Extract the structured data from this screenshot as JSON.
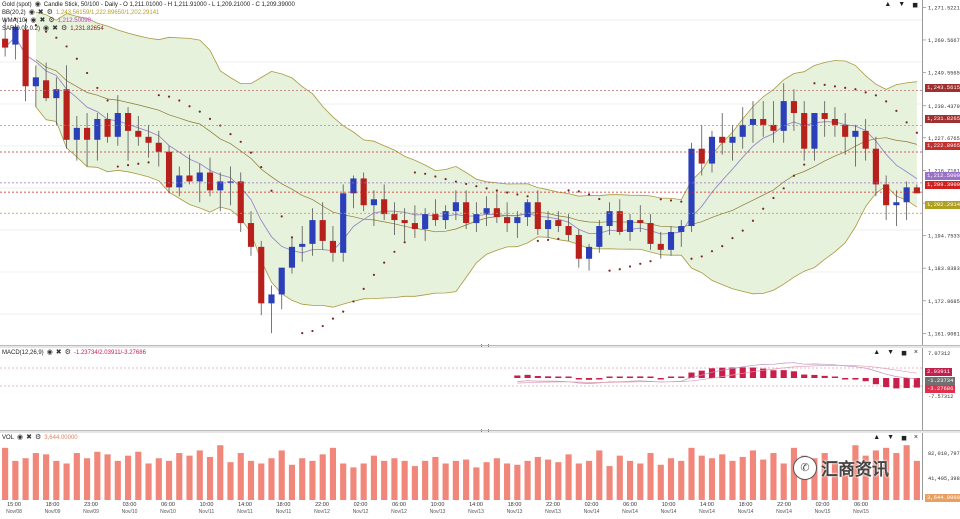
{
  "main": {
    "symbol": "Gold (spot)",
    "chart_desc": "Candle Stick, 50/100 - Daily - O 1,211.01000 - H 1,211.91000 - L 1,209.21000 - C 1,209.39000",
    "ind1": {
      "label": "BB(20,2)",
      "value": "1,243.56159/1,222.89650/1,202.29141",
      "color": "#b8a020"
    },
    "ind2": {
      "label": "WMA(10)",
      "value": "1,212.50090",
      "color": "#c040c0"
    },
    "ind3": {
      "label": "SAR(0.02,0.2)",
      "value": "1,231.82654",
      "color": "#8a2020"
    },
    "yticks": [
      "1,271.52210",
      "1,260.56671",
      "1,249.55651",
      "1,238.43791",
      "1,227.67651",
      "1,216.71612",
      "1,205.70372",
      "1,194.75332",
      "1,183.83839",
      "1,172.86853",
      "1,161.90813"
    ],
    "tags": [
      {
        "text": "1,243.56159",
        "color": "#a03030"
      },
      {
        "text": "1,231.82654",
        "color": "#a03030"
      },
      {
        "text": "1,222.89650",
        "color": "#c03030"
      },
      {
        "text": "1,212.50090",
        "color": "#9a70c8"
      },
      {
        "text": "1,209.39000",
        "color": "#d02020"
      },
      {
        "text": "1,202.29141",
        "color": "#b0a020"
      }
    ]
  },
  "macd": {
    "label": "MACD(12,26,9)",
    "value": "-1.23734/2.03911/-3.27686",
    "yticks": [
      "7.07312",
      "-7.57312"
    ],
    "tags": [
      {
        "text": "2.03911",
        "color": "#c02050"
      },
      {
        "text": "-1.23734",
        "color": "#707070"
      },
      {
        "text": "-3.27686",
        "color": "#e0304e"
      }
    ]
  },
  "vol": {
    "label": "VOL",
    "value": "3,644.00000",
    "yticks": [
      "82,010,797",
      "41,405,398"
    ],
    "tag": {
      "text": "3,644.00000",
      "color": "#e8a060"
    }
  },
  "xaxis": {
    "ticks": [
      {
        "t": "15:00",
        "d": "Nov/08"
      },
      {
        "t": "18:00",
        "d": "Nov/09"
      },
      {
        "t": "23:00",
        "d": "Nov/09"
      },
      {
        "t": "03:00",
        "d": "Nov/10"
      },
      {
        "t": "06:00",
        "d": "Nov/10"
      },
      {
        "t": "10:00",
        "d": "Nov/11"
      },
      {
        "t": "14:00",
        "d": "Nov/11"
      },
      {
        "t": "18:00",
        "d": "Nov/11"
      },
      {
        "t": "22:00",
        "d": "Nov/12"
      },
      {
        "t": "02:00",
        "d": "Nov/12"
      },
      {
        "t": "06:00",
        "d": "Nov/12"
      },
      {
        "t": "10:00",
        "d": "Nov/13"
      },
      {
        "t": "14:00",
        "d": "Nov/13"
      },
      {
        "t": "18:00",
        "d": "Nov/13"
      },
      {
        "t": "22:00",
        "d": "Nov/13"
      },
      {
        "t": "02:00",
        "d": "Nov/14"
      },
      {
        "t": "06:00",
        "d": "Nov/14"
      },
      {
        "t": "10:00",
        "d": "Nov/14"
      },
      {
        "t": "14:00",
        "d": "Nov/14"
      },
      {
        "t": "18:00",
        "d": "Nov/14"
      },
      {
        "t": "22:00",
        "d": "Nov/14"
      },
      {
        "t": "02:00",
        "d": "Nov/15"
      },
      {
        "t": "06:00",
        "d": "Nov/15"
      }
    ]
  },
  "controls": {
    "up": "▲",
    "down": "▼",
    "max": "◼",
    "close": "×"
  },
  "watermark": "汇商资讯",
  "chart_data": {
    "type": "candlestick",
    "y_range": [
      1158,
      1274
    ],
    "candles": [
      [
        1261,
        1268,
        1255,
        1258
      ],
      [
        1259,
        1266,
        1254,
        1265
      ],
      [
        1264,
        1266,
        1240,
        1245
      ],
      [
        1245,
        1252,
        1238,
        1248
      ],
      [
        1247,
        1253,
        1240,
        1241
      ],
      [
        1241,
        1248,
        1232,
        1244
      ],
      [
        1244,
        1252,
        1224,
        1227
      ],
      [
        1227,
        1235,
        1220,
        1231
      ],
      [
        1231,
        1236,
        1218,
        1227
      ],
      [
        1227,
        1236,
        1220,
        1234
      ],
      [
        1234,
        1236,
        1226,
        1228
      ],
      [
        1228,
        1242,
        1225,
        1236
      ],
      [
        1236,
        1238,
        1220,
        1230
      ],
      [
        1230,
        1235,
        1225,
        1228
      ],
      [
        1228,
        1232,
        1221,
        1226
      ],
      [
        1226,
        1230,
        1218,
        1223
      ],
      [
        1223,
        1225,
        1209,
        1211
      ],
      [
        1211,
        1218,
        1208,
        1215
      ],
      [
        1215,
        1222,
        1212,
        1213
      ],
      [
        1213,
        1219,
        1206,
        1216
      ],
      [
        1216,
        1221,
        1208,
        1210
      ],
      [
        1210,
        1216,
        1203,
        1213
      ],
      [
        1213,
        1218,
        1205,
        1213
      ],
      [
        1213,
        1216,
        1196,
        1199
      ],
      [
        1199,
        1203,
        1188,
        1191
      ],
      [
        1191,
        1193,
        1168,
        1172
      ],
      [
        1172,
        1178,
        1162,
        1175
      ],
      [
        1175,
        1184,
        1170,
        1184
      ],
      [
        1184,
        1194,
        1182,
        1191
      ],
      [
        1191,
        1198,
        1186,
        1192
      ],
      [
        1192,
        1204,
        1188,
        1200
      ],
      [
        1200,
        1206,
        1190,
        1193
      ],
      [
        1193,
        1198,
        1186,
        1189
      ],
      [
        1189,
        1212,
        1186,
        1209
      ],
      [
        1209,
        1215,
        1204,
        1214
      ],
      [
        1214,
        1216,
        1203,
        1205
      ],
      [
        1205,
        1210,
        1198,
        1207
      ],
      [
        1207,
        1212,
        1200,
        1202
      ],
      [
        1202,
        1206,
        1195,
        1200
      ],
      [
        1200,
        1204,
        1193,
        1199
      ],
      [
        1199,
        1205,
        1194,
        1197
      ],
      [
        1197,
        1204,
        1193,
        1202
      ],
      [
        1202,
        1207,
        1198,
        1200
      ],
      [
        1200,
        1205,
        1197,
        1203
      ],
      [
        1203,
        1210,
        1200,
        1206
      ],
      [
        1206,
        1210,
        1197,
        1199
      ],
      [
        1199,
        1206,
        1196,
        1202
      ],
      [
        1202,
        1208,
        1198,
        1204
      ],
      [
        1204,
        1209,
        1199,
        1201
      ],
      [
        1201,
        1206,
        1196,
        1199
      ],
      [
        1199,
        1203,
        1194,
        1201
      ],
      [
        1201,
        1207,
        1198,
        1206
      ],
      [
        1206,
        1210,
        1195,
        1197
      ],
      [
        1197,
        1203,
        1194,
        1200
      ],
      [
        1200,
        1203,
        1196,
        1198
      ],
      [
        1198,
        1202,
        1193,
        1195
      ],
      [
        1195,
        1197,
        1184,
        1187
      ],
      [
        1187,
        1192,
        1183,
        1191
      ],
      [
        1191,
        1200,
        1189,
        1198
      ],
      [
        1198,
        1206,
        1195,
        1203
      ],
      [
        1203,
        1207,
        1195,
        1196
      ],
      [
        1196,
        1202,
        1193,
        1200
      ],
      [
        1200,
        1205,
        1196,
        1199
      ],
      [
        1199,
        1202,
        1190,
        1192
      ],
      [
        1192,
        1196,
        1187,
        1190
      ],
      [
        1190,
        1198,
        1188,
        1196
      ],
      [
        1196,
        1200,
        1191,
        1198
      ],
      [
        1198,
        1226,
        1196,
        1224
      ],
      [
        1224,
        1232,
        1215,
        1219
      ],
      [
        1219,
        1230,
        1216,
        1228
      ],
      [
        1228,
        1236,
        1222,
        1226
      ],
      [
        1226,
        1232,
        1220,
        1228
      ],
      [
        1228,
        1238,
        1224,
        1232
      ],
      [
        1232,
        1240,
        1226,
        1234
      ],
      [
        1234,
        1240,
        1228,
        1232
      ],
      [
        1232,
        1240,
        1226,
        1230
      ],
      [
        1230,
        1246,
        1226,
        1240
      ],
      [
        1240,
        1244,
        1230,
        1236
      ],
      [
        1236,
        1240,
        1220,
        1224
      ],
      [
        1224,
        1236,
        1220,
        1236
      ],
      [
        1236,
        1240,
        1228,
        1234
      ],
      [
        1234,
        1238,
        1228,
        1232
      ],
      [
        1232,
        1236,
        1222,
        1228
      ],
      [
        1228,
        1232,
        1218,
        1230
      ],
      [
        1230,
        1234,
        1220,
        1224
      ],
      [
        1224,
        1228,
        1208,
        1212
      ],
      [
        1212,
        1215,
        1200,
        1205
      ],
      [
        1205,
        1210,
        1198,
        1206
      ],
      [
        1206,
        1213,
        1200,
        1211
      ],
      [
        1211,
        1212,
        1209,
        1209
      ]
    ],
    "volume": [
      40,
      30,
      32,
      36,
      35,
      30,
      28,
      36,
      32,
      37,
      35,
      30,
      34,
      37,
      28,
      32,
      30,
      36,
      34,
      38,
      33,
      42,
      29,
      36,
      30,
      28,
      32,
      38,
      27,
      32,
      30,
      35,
      40,
      28,
      25,
      28,
      34,
      30,
      32,
      30,
      26,
      30,
      33,
      28,
      30,
      31,
      25,
      29,
      32,
      28,
      27,
      30,
      33,
      31,
      29,
      35,
      28,
      30,
      38,
      26,
      34,
      30,
      28,
      36,
      27,
      32,
      30,
      40,
      34,
      32,
      35,
      30,
      33,
      38,
      31,
      36,
      28,
      40,
      34,
      32,
      36,
      30,
      28,
      42,
      34,
      38,
      40,
      36,
      42,
      30,
      8
    ]
  }
}
